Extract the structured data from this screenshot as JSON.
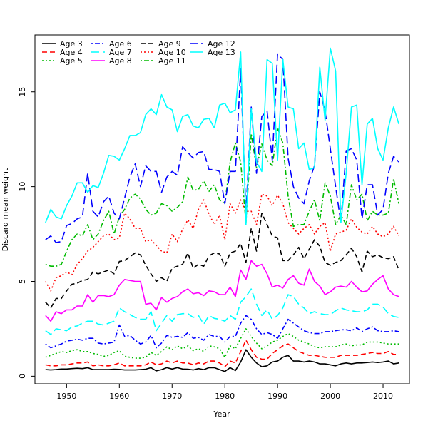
{
  "chart_data": {
    "type": "line",
    "xlabel": "Year",
    "ylabel": "Discard mean weight",
    "xlim": [
      1944,
      2015
    ],
    "ylim": [
      -0.4,
      18.0
    ],
    "xticks": [
      1950,
      1960,
      1970,
      1980,
      1990,
      2000,
      2010
    ],
    "yticks": [
      0,
      5,
      10,
      15
    ],
    "legend_position": "top-left",
    "x": [
      1946,
      1947,
      1948,
      1949,
      1950,
      1951,
      1952,
      1953,
      1954,
      1955,
      1956,
      1957,
      1958,
      1959,
      1960,
      1961,
      1962,
      1963,
      1964,
      1965,
      1966,
      1967,
      1968,
      1969,
      1970,
      1971,
      1972,
      1973,
      1974,
      1975,
      1976,
      1977,
      1978,
      1979,
      1980,
      1981,
      1982,
      1983,
      1984,
      1985,
      1986,
      1987,
      1988,
      1989,
      1990,
      1991,
      1992,
      1993,
      1994,
      1995,
      1996,
      1997,
      1998,
      1999,
      2000,
      2001,
      2002,
      2003,
      2004,
      2005,
      2006,
      2007,
      2008,
      2009,
      2010,
      2011,
      2012,
      2013
    ],
    "series": [
      {
        "name": "Age 3",
        "color": "#000000",
        "dash": "solid",
        "values": [
          0.35,
          0.33,
          0.35,
          0.38,
          0.38,
          0.4,
          0.42,
          0.4,
          0.45,
          0.35,
          0.35,
          0.35,
          0.35,
          0.37,
          0.36,
          0.33,
          0.33,
          0.33,
          0.35,
          0.37,
          0.45,
          0.28,
          0.35,
          0.45,
          0.38,
          0.45,
          0.38,
          0.37,
          0.33,
          0.4,
          0.35,
          0.45,
          0.45,
          0.35,
          0.25,
          0.45,
          0.3,
          0.75,
          1.4,
          1.0,
          0.7,
          0.5,
          0.55,
          0.75,
          0.8,
          1.0,
          1.1,
          0.8,
          0.8,
          0.75,
          0.8,
          0.75,
          0.65,
          0.65,
          0.6,
          0.55,
          0.65,
          0.7,
          0.65,
          0.7,
          0.7,
          0.72,
          0.75,
          0.72,
          0.75,
          0.8,
          0.65,
          0.7
        ]
      },
      {
        "name": "Age 4",
        "color": "#ff0000",
        "dash": "dashed",
        "values": [
          0.6,
          0.55,
          0.55,
          0.6,
          0.6,
          0.65,
          0.7,
          0.7,
          0.75,
          0.55,
          0.6,
          0.55,
          0.55,
          0.6,
          0.7,
          0.55,
          0.55,
          0.55,
          0.55,
          0.6,
          0.75,
          0.6,
          0.65,
          0.8,
          0.7,
          0.8,
          0.7,
          0.7,
          0.6,
          0.7,
          0.65,
          0.8,
          0.8,
          0.7,
          0.5,
          0.8,
          0.7,
          1.3,
          1.9,
          1.4,
          1.0,
          0.9,
          0.9,
          1.2,
          1.4,
          1.6,
          1.7,
          1.5,
          1.3,
          1.2,
          1.1,
          1.1,
          1.05,
          1.0,
          1.0,
          1.0,
          1.1,
          1.1,
          1.1,
          1.1,
          1.15,
          1.2,
          1.25,
          1.2,
          1.2,
          1.3,
          1.15,
          1.15
        ]
      },
      {
        "name": "Age 5",
        "color": "#00bb00",
        "dash": "dotted",
        "values": [
          1.0,
          1.1,
          1.2,
          1.3,
          1.25,
          1.35,
          1.4,
          1.3,
          1.3,
          1.2,
          1.15,
          1.05,
          1.1,
          1.25,
          1.35,
          1.05,
          1.0,
          0.95,
          0.95,
          1.0,
          1.25,
          1.1,
          1.3,
          1.55,
          1.4,
          1.6,
          1.45,
          1.6,
          1.35,
          1.45,
          1.3,
          1.6,
          1.55,
          1.45,
          1.0,
          1.6,
          1.45,
          2.0,
          2.5,
          2.1,
          1.75,
          1.45,
          1.6,
          1.8,
          1.9,
          2.1,
          2.25,
          2.1,
          1.9,
          1.8,
          1.7,
          1.55,
          1.5,
          1.55,
          1.55,
          1.55,
          1.65,
          1.7,
          1.6,
          1.65,
          1.65,
          1.8,
          1.8,
          1.8,
          1.75,
          1.7,
          1.7,
          1.7
        ]
      },
      {
        "name": "Age 6",
        "color": "#0000ff",
        "dash": "dotdash",
        "values": [
          1.7,
          1.5,
          1.6,
          1.7,
          1.85,
          1.9,
          1.95,
          1.9,
          2.0,
          2.0,
          1.75,
          1.7,
          1.75,
          1.8,
          2.7,
          2.1,
          2.15,
          1.9,
          1.7,
          1.8,
          2.15,
          1.5,
          1.75,
          2.15,
          2.05,
          2.1,
          2.05,
          2.3,
          2.0,
          2.05,
          1.9,
          2.2,
          2.1,
          2.1,
          1.8,
          2.1,
          2.1,
          2.8,
          3.2,
          3.0,
          2.5,
          2.2,
          2.3,
          2.2,
          2.0,
          2.5,
          3.0,
          2.8,
          2.6,
          2.4,
          2.3,
          2.25,
          2.25,
          2.35,
          2.35,
          2.4,
          2.45,
          2.45,
          2.4,
          2.55,
          2.35,
          2.5,
          2.6,
          2.4,
          2.35,
          2.35,
          2.4,
          2.35
        ]
      },
      {
        "name": "Age 7",
        "color": "#00ffff",
        "dash": "longdash",
        "values": [
          2.4,
          2.2,
          2.5,
          2.45,
          2.4,
          2.6,
          2.65,
          2.8,
          2.9,
          2.9,
          2.75,
          2.7,
          2.8,
          2.9,
          3.6,
          3.4,
          3.25,
          3.1,
          3.0,
          3.0,
          3.4,
          2.4,
          2.8,
          3.2,
          2.9,
          3.25,
          3.3,
          3.3,
          3.1,
          3.2,
          2.75,
          3.2,
          3.05,
          3.0,
          2.9,
          3.2,
          3.0,
          3.9,
          4.2,
          4.6,
          3.8,
          3.2,
          3.5,
          3.0,
          3.2,
          3.6,
          4.3,
          4.2,
          3.8,
          3.6,
          3.3,
          3.4,
          3.3,
          3.25,
          3.25,
          3.45,
          3.6,
          3.5,
          3.45,
          3.4,
          3.4,
          3.5,
          3.8,
          3.8,
          3.65,
          3.3,
          3.15,
          3.1
        ]
      },
      {
        "name": "Age 8",
        "color": "#ff00ff",
        "dash": "solid",
        "values": [
          3.2,
          2.9,
          3.4,
          3.3,
          3.5,
          3.5,
          3.7,
          3.7,
          4.3,
          3.9,
          4.25,
          4.25,
          4.2,
          4.3,
          4.8,
          5.1,
          5.05,
          5.0,
          5.0,
          3.8,
          3.85,
          3.5,
          4.15,
          3.9,
          4.1,
          4.2,
          4.45,
          4.6,
          4.35,
          4.4,
          4.25,
          4.5,
          4.45,
          4.3,
          4.3,
          4.7,
          4.2,
          5.6,
          5.1,
          6.1,
          5.8,
          5.9,
          5.4,
          4.7,
          4.8,
          4.65,
          5.1,
          5.3,
          4.9,
          4.8,
          5.65,
          5.0,
          4.75,
          4.3,
          4.45,
          4.7,
          4.75,
          4.7,
          5.0,
          4.7,
          4.45,
          4.5,
          4.85,
          5.1,
          5.3,
          4.6,
          4.3,
          4.2
        ]
      },
      {
        "name": "Age 9",
        "color": "#000000",
        "dash": "dashed",
        "values": [
          3.9,
          3.6,
          4.1,
          4.1,
          4.5,
          4.85,
          4.9,
          5.05,
          5.1,
          5.5,
          5.4,
          5.5,
          5.6,
          5.4,
          6.05,
          6.1,
          6.3,
          6.5,
          6.4,
          5.85,
          5.4,
          5.0,
          5.2,
          5.0,
          5.7,
          5.8,
          5.9,
          6.5,
          5.7,
          5.9,
          5.8,
          6.35,
          6.5,
          6.45,
          5.8,
          6.5,
          6.6,
          7.0,
          6.0,
          7.8,
          6.6,
          8.6,
          8.0,
          7.4,
          7.3,
          6.1,
          6.1,
          6.4,
          6.8,
          6.2,
          6.7,
          7.2,
          6.85,
          6.0,
          5.85,
          6.0,
          6.1,
          6.4,
          6.75,
          6.3,
          5.5,
          6.6,
          6.3,
          6.4,
          6.25,
          6.2,
          6.3,
          5.6
        ]
      },
      {
        "name": "Age 10",
        "color": "#ff0000",
        "dash": "dotted",
        "values": [
          5.0,
          4.5,
          5.2,
          5.3,
          5.5,
          5.35,
          5.9,
          6.2,
          6.6,
          6.8,
          7.1,
          7.4,
          7.5,
          7.2,
          7.3,
          8.6,
          8.3,
          7.8,
          7.8,
          7.1,
          7.2,
          6.9,
          6.6,
          6.5,
          7.5,
          7.1,
          7.75,
          8.25,
          7.8,
          8.8,
          9.3,
          8.55,
          8.0,
          8.5,
          7.2,
          9.1,
          8.6,
          9.3,
          8.7,
          8.7,
          8.0,
          9.6,
          9.5,
          9.0,
          9.55,
          9.1,
          8.1,
          7.8,
          7.5,
          7.8,
          8.0,
          7.5,
          7.9,
          8.1,
          6.6,
          7.5,
          7.6,
          7.7,
          8.3,
          7.85,
          7.6,
          7.5,
          7.9,
          7.5,
          7.35,
          7.5,
          7.9,
          7.4
        ]
      },
      {
        "name": "Age 11",
        "color": "#00bb00",
        "dash": "dotdash",
        "values": [
          5.9,
          5.8,
          5.8,
          5.9,
          6.6,
          7.2,
          7.5,
          7.4,
          8.0,
          7.2,
          7.5,
          8.2,
          8.7,
          7.5,
          8.4,
          8.8,
          9.4,
          9.6,
          9.35,
          8.8,
          8.5,
          8.6,
          9.1,
          9.0,
          8.7,
          8.9,
          9.2,
          10.5,
          9.8,
          9.85,
          10.3,
          9.75,
          10.1,
          9.3,
          9.1,
          11.3,
          12.3,
          11.3,
          8.1,
          12.8,
          11.0,
          12.25,
          11.4,
          11.1,
          13.1,
          12.3,
          9.5,
          7.9,
          8.0,
          8.0,
          8.7,
          9.3,
          8.2,
          10.2,
          9.5,
          8.0,
          8.5,
          8.0,
          10.1,
          9.3,
          9.6,
          8.2,
          8.7,
          8.5,
          8.5,
          8.6,
          10.4,
          9.1
        ]
      },
      {
        "name": "Age 12",
        "color": "#0000ff",
        "dash": "longdash",
        "values": [
          7.2,
          7.4,
          7.05,
          7.1,
          7.95,
          8.05,
          8.3,
          8.4,
          10.7,
          8.7,
          8.4,
          9.2,
          9.5,
          8.6,
          8.3,
          9.4,
          10.5,
          11.2,
          10.0,
          11.1,
          10.8,
          10.8,
          9.7,
          10.5,
          10.8,
          10.6,
          12.1,
          11.8,
          11.5,
          11.8,
          11.85,
          10.9,
          10.9,
          10.8,
          9.1,
          10.8,
          10.8,
          16.2,
          8.6,
          14.2,
          10.7,
          13.7,
          14.0,
          11.4,
          17.0,
          16.7,
          11.5,
          10.0,
          9.4,
          9.1,
          10.3,
          11.1,
          15.0,
          14.0,
          12.0,
          10.0,
          8.1,
          11.9,
          12.0,
          11.4,
          8.3,
          10.1,
          10.1,
          8.5,
          8.8,
          10.7,
          11.6,
          11.3
        ]
      },
      {
        "name": "Age 13",
        "color": "#00ffff",
        "dash": "solid",
        "values": [
          8.1,
          8.8,
          8.4,
          8.3,
          9.0,
          9.5,
          10.2,
          10.2,
          9.7,
          10.05,
          9.95,
          10.7,
          11.65,
          11.6,
          11.4,
          12.0,
          12.7,
          12.7,
          12.85,
          13.8,
          14.1,
          13.8,
          14.85,
          14.2,
          14.05,
          12.9,
          13.7,
          13.8,
          13.2,
          13.1,
          13.55,
          13.6,
          13.1,
          14.3,
          14.4,
          13.9,
          14.05,
          17.1,
          8.0,
          14.1,
          11.3,
          10.8,
          16.7,
          16.5,
          11.4,
          16.7,
          14.2,
          14.1,
          12.0,
          12.3,
          10.9,
          11.0,
          16.3,
          13.5,
          17.3,
          16.1,
          8.1,
          10.7,
          14.2,
          14.3,
          10.1,
          13.3,
          13.6,
          12.0,
          11.4,
          13.1,
          14.2,
          13.3
        ]
      }
    ]
  }
}
